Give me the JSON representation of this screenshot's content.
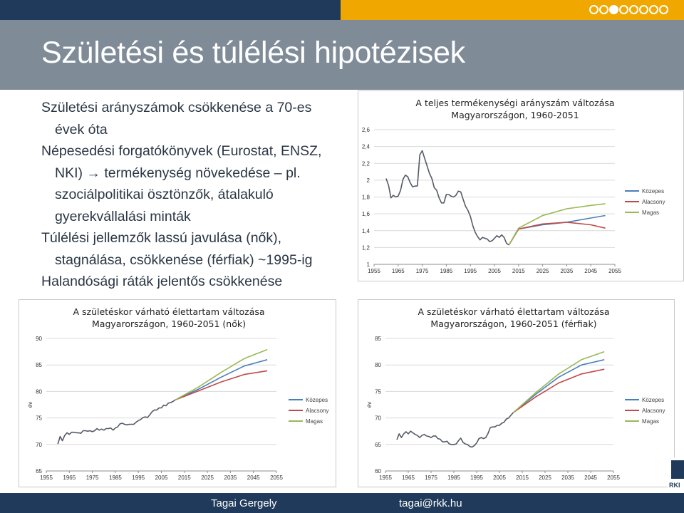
{
  "title": "Születési és túlélési hipotézisek",
  "progress": {
    "total": 8,
    "active": 3
  },
  "bullets": [
    {
      "level": 1,
      "text": "Születési arányszámok csökkenése a 70-es"
    },
    {
      "level": 2,
      "text": "évek óta"
    },
    {
      "level": 1,
      "text": "Népesedési forgatókönyvek (Eurostat, ENSZ,"
    },
    {
      "level": 2,
      "text": "NKI) → termékenység növekedése – pl."
    },
    {
      "level": 2,
      "text": "szociálpolitikai ösztönzők, átalakuló"
    },
    {
      "level": 2,
      "text": "gyerekvállalási minták"
    },
    {
      "level": 1,
      "text": "Túlélési jellemzők lassú javulása (nők),"
    },
    {
      "level": 2,
      "text": "stagnálása, csökkenése (férfiak) ~1995-ig"
    },
    {
      "level": 1,
      "text": "Halandósági ráták jelentős csökkenése"
    }
  ],
  "colors": {
    "kozepes": "#4a7ebb",
    "alacsony": "#be4b48",
    "magas": "#98b954",
    "historical": "#555a66",
    "navy": "#1f3a5a",
    "gold": "#f0a800",
    "band": "#7f8c98"
  },
  "chart_data": [
    {
      "id": "tfr",
      "type": "line",
      "title": [
        "A teljes termékenységi arányszám változása",
        "Magyarországon, 1960-2051"
      ],
      "ylabel": "",
      "xlim": [
        1955,
        2055
      ],
      "ylim": [
        1,
        2.6
      ],
      "xticks": [
        1955,
        1965,
        1975,
        1985,
        1995,
        2005,
        2015,
        2025,
        2035,
        2045,
        2055
      ],
      "yticks": [
        1,
        1.2,
        1.4,
        1.6,
        1.8,
        2,
        2.2,
        2.4,
        2.6
      ],
      "ytick_labels": [
        "1",
        "1,2",
        "1,4",
        "1,6",
        "1,8",
        "2",
        "2,2",
        "2,4",
        "2,6"
      ],
      "legend": [
        "Közepes",
        "Alacsony",
        "Magas"
      ],
      "history": {
        "x": [
          1960,
          1961,
          1962,
          1963,
          1964,
          1965,
          1966,
          1967,
          1968,
          1969,
          1970,
          1971,
          1972,
          1973,
          1974,
          1975,
          1976,
          1977,
          1978,
          1979,
          1980,
          1981,
          1982,
          1983,
          1984,
          1985,
          1986,
          1987,
          1988,
          1989,
          1990,
          1991,
          1992,
          1993,
          1994,
          1995,
          1996,
          1997,
          1998,
          1999,
          2000,
          2001,
          2002,
          2003,
          2004,
          2005,
          2006,
          2007,
          2008,
          2009,
          2010,
          2011
        ],
        "y": [
          2.02,
          1.94,
          1.79,
          1.82,
          1.8,
          1.81,
          1.88,
          2.01,
          2.06,
          2.04,
          1.97,
          1.92,
          1.93,
          1.93,
          2.3,
          2.35,
          2.26,
          2.17,
          2.08,
          2.02,
          1.91,
          1.88,
          1.79,
          1.73,
          1.73,
          1.83,
          1.83,
          1.81,
          1.8,
          1.82,
          1.87,
          1.86,
          1.77,
          1.69,
          1.64,
          1.57,
          1.46,
          1.38,
          1.33,
          1.29,
          1.32,
          1.31,
          1.3,
          1.27,
          1.28,
          1.31,
          1.34,
          1.32,
          1.35,
          1.32,
          1.25,
          1.23
        ]
      },
      "series": [
        {
          "name": "Közepes",
          "x": [
            2011,
            2015,
            2025,
            2035,
            2045,
            2051
          ],
          "y": [
            1.23,
            1.42,
            1.47,
            1.5,
            1.55,
            1.58
          ]
        },
        {
          "name": "Alacsony",
          "x": [
            2011,
            2015,
            2025,
            2035,
            2045,
            2051
          ],
          "y": [
            1.23,
            1.42,
            1.48,
            1.5,
            1.47,
            1.43
          ]
        },
        {
          "name": "Magas",
          "x": [
            2011,
            2015,
            2025,
            2035,
            2045,
            2051
          ],
          "y": [
            1.23,
            1.43,
            1.58,
            1.66,
            1.7,
            1.72
          ]
        }
      ]
    },
    {
      "id": "female",
      "type": "line",
      "title": [
        "A születéskor várható élettartam változása",
        "Magyarországon, 1960-2051 (nők)"
      ],
      "ylabel": "év",
      "xlim": [
        1955,
        2055
      ],
      "ylim": [
        65,
        90
      ],
      "xticks": [
        1955,
        1965,
        1975,
        1985,
        1995,
        2005,
        2015,
        2025,
        2035,
        2045,
        2055
      ],
      "yticks": [
        65,
        70,
        75,
        80,
        85,
        90
      ],
      "ytick_labels": [
        "65",
        "70",
        "75",
        "80",
        "85",
        "90"
      ],
      "legend": [
        "Közepes",
        "Alacsony",
        "Magas"
      ],
      "history": {
        "x": [
          1960,
          1961,
          1962,
          1963,
          1964,
          1965,
          1966,
          1967,
          1968,
          1969,
          1970,
          1971,
          1972,
          1973,
          1974,
          1975,
          1976,
          1977,
          1978,
          1979,
          1980,
          1981,
          1982,
          1983,
          1984,
          1985,
          1986,
          1987,
          1988,
          1989,
          1990,
          1991,
          1992,
          1993,
          1994,
          1995,
          1996,
          1997,
          1998,
          1999,
          2000,
          2001,
          2002,
          2003,
          2004,
          2005,
          2006,
          2007,
          2008,
          2009,
          2010,
          2011
        ],
        "y": [
          70.1,
          71.5,
          70.7,
          71.7,
          72.2,
          71.9,
          72.3,
          72.3,
          72.2,
          72.2,
          72.1,
          72.6,
          72.6,
          72.5,
          72.6,
          72.4,
          72.6,
          73.0,
          72.7,
          72.9,
          72.7,
          73.0,
          73.0,
          73.1,
          72.7,
          73.1,
          73.3,
          73.9,
          74.0,
          73.8,
          73.7,
          73.8,
          73.8,
          73.8,
          74.2,
          74.5,
          74.7,
          75.1,
          75.2,
          75.1,
          75.6,
          76.2,
          76.5,
          76.5,
          76.9,
          76.9,
          77.4,
          77.3,
          77.8,
          77.9,
          78.1,
          78.4
        ]
      },
      "series": [
        {
          "name": "Közepes",
          "x": [
            2011,
            2021,
            2031,
            2041,
            2051
          ],
          "y": [
            78.4,
            80.4,
            82.7,
            84.8,
            86.0
          ]
        },
        {
          "name": "Alacsony",
          "x": [
            2011,
            2021,
            2031,
            2041,
            2051
          ],
          "y": [
            78.4,
            80.1,
            81.8,
            83.2,
            83.9
          ]
        },
        {
          "name": "Magas",
          "x": [
            2011,
            2021,
            2031,
            2041,
            2051
          ],
          "y": [
            78.4,
            80.8,
            83.6,
            86.2,
            87.9
          ]
        }
      ]
    },
    {
      "id": "male",
      "type": "line",
      "title": [
        "A születéskor várható élettartam változása",
        "Magyarországon, 1960-2051 (férfiak)"
      ],
      "ylabel": "év",
      "xlim": [
        1955,
        2055
      ],
      "ylim": [
        60,
        85
      ],
      "xticks": [
        1955,
        1965,
        1975,
        1985,
        1995,
        2005,
        2015,
        2025,
        2035,
        2045,
        2055
      ],
      "yticks": [
        60,
        65,
        70,
        75,
        80,
        85
      ],
      "ytick_labels": [
        "60",
        "65",
        "70",
        "75",
        "80",
        "85"
      ],
      "legend": [
        "Közepes",
        "Alacsony",
        "Magas"
      ],
      "history": {
        "x": [
          1960,
          1961,
          1962,
          1963,
          1964,
          1965,
          1966,
          1967,
          1968,
          1969,
          1970,
          1971,
          1972,
          1973,
          1974,
          1975,
          1976,
          1977,
          1978,
          1979,
          1980,
          1981,
          1982,
          1983,
          1984,
          1985,
          1986,
          1987,
          1988,
          1989,
          1990,
          1991,
          1992,
          1993,
          1994,
          1995,
          1996,
          1997,
          1998,
          1999,
          2000,
          2001,
          2002,
          2003,
          2004,
          2005,
          2006,
          2007,
          2008,
          2009,
          2010,
          2011
        ],
        "y": [
          65.9,
          67.0,
          66.3,
          67.0,
          67.4,
          67.0,
          67.5,
          67.2,
          66.9,
          66.7,
          66.3,
          66.7,
          66.9,
          66.6,
          66.5,
          66.3,
          66.6,
          66.6,
          66.1,
          66.0,
          65.5,
          65.5,
          65.6,
          65.1,
          65.0,
          65.0,
          65.1,
          65.7,
          66.2,
          65.4,
          65.1,
          65.0,
          64.6,
          64.5,
          64.8,
          65.3,
          66.1,
          66.3,
          66.1,
          66.3,
          67.1,
          68.2,
          68.3,
          68.3,
          68.6,
          68.6,
          69.0,
          69.2,
          69.8,
          70.0,
          70.5,
          71.0
        ]
      },
      "series": [
        {
          "name": "Közepes",
          "x": [
            2011,
            2021,
            2031,
            2041,
            2051
          ],
          "y": [
            71.0,
            74.5,
            77.7,
            80.0,
            81.0
          ]
        },
        {
          "name": "Alacsony",
          "x": [
            2011,
            2021,
            2031,
            2041,
            2051
          ],
          "y": [
            71.0,
            74.0,
            76.6,
            78.3,
            79.2
          ]
        },
        {
          "name": "Magas",
          "x": [
            2011,
            2021,
            2031,
            2041,
            2051
          ],
          "y": [
            71.0,
            74.8,
            78.3,
            81.0,
            82.5
          ]
        }
      ]
    }
  ],
  "footer": {
    "author": "Tagai Gergely",
    "email": "tagai@rkk.hu"
  },
  "logo": {
    "text": "RKI"
  }
}
